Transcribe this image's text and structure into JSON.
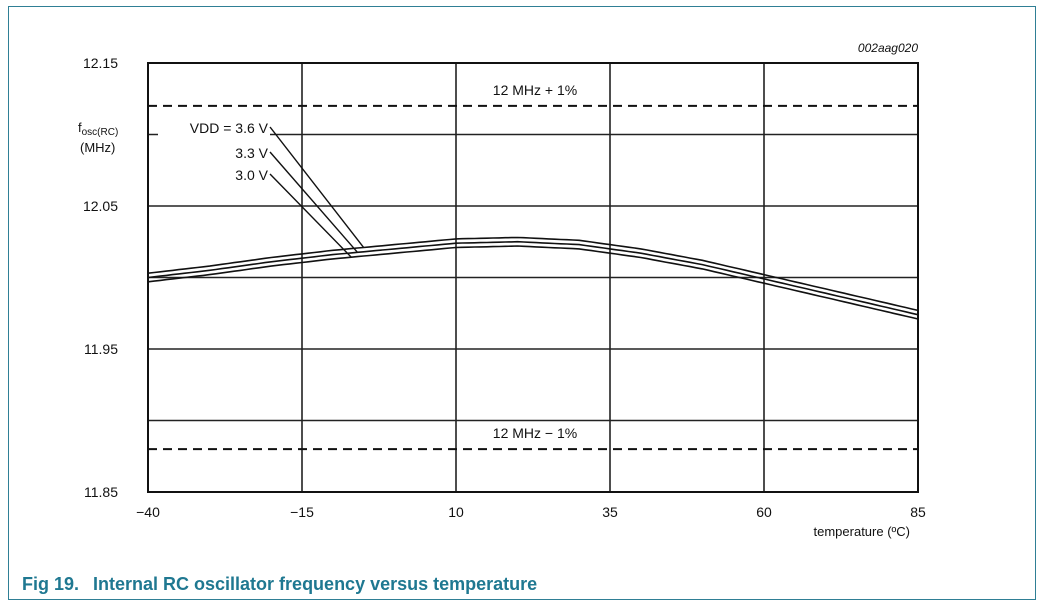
{
  "figure": {
    "number": "Fig 19.",
    "caption": "Internal RC oscillator frequency versus temperature"
  },
  "colors": {
    "frame": "#2f7f95",
    "caption": "#1f7891"
  },
  "chart_data": {
    "type": "line",
    "code": "002aag020",
    "ylabel_main": "f",
    "ylabel_sub": "osc(RC)",
    "ylabel_unit": "(MHz)",
    "xlabel": "temperature (ºC)",
    "xlim": [
      -40,
      85
    ],
    "ylim": [
      11.85,
      12.15
    ],
    "xticks": [
      "−40",
      "−15",
      "10",
      "35",
      "60",
      "85"
    ],
    "xtick_values": [
      -40,
      -15,
      10,
      35,
      60,
      85
    ],
    "yticks": [
      "12.15",
      "12.05",
      "11.95",
      "11.85"
    ],
    "ytick_values": [
      12.15,
      12.05,
      11.95,
      11.85
    ],
    "grid": true,
    "reference_lines": [
      {
        "label": "12 MHz + 1%",
        "value": 12.12
      },
      {
        "label": "12 MHz − 1%",
        "value": 11.88
      }
    ],
    "series": [
      {
        "name": "VDD = 3.6 V",
        "x": [
          -40,
          -30,
          -20,
          -10,
          0,
          10,
          20,
          30,
          40,
          50,
          60,
          70,
          85
        ],
        "y": [
          12.003,
          12.008,
          12.014,
          12.019,
          12.023,
          12.027,
          12.028,
          12.026,
          12.02,
          12.012,
          12.002,
          11.992,
          11.977
        ]
      },
      {
        "name": "3.3 V",
        "x": [
          -40,
          -30,
          -20,
          -10,
          0,
          10,
          20,
          30,
          40,
          50,
          60,
          70,
          85
        ],
        "y": [
          12.0,
          12.005,
          12.011,
          12.016,
          12.02,
          12.024,
          12.025,
          12.023,
          12.017,
          12.009,
          11.999,
          11.989,
          11.974
        ]
      },
      {
        "name": "3.0 V",
        "x": [
          -40,
          -30,
          -20,
          -10,
          0,
          10,
          20,
          30,
          40,
          50,
          60,
          70,
          85
        ],
        "y": [
          11.997,
          12.002,
          12.008,
          12.013,
          12.017,
          12.021,
          12.022,
          12.02,
          12.014,
          12.006,
          11.996,
          11.986,
          11.971
        ]
      }
    ],
    "series_leader_x": [
      -5,
      -6,
      -7
    ]
  }
}
